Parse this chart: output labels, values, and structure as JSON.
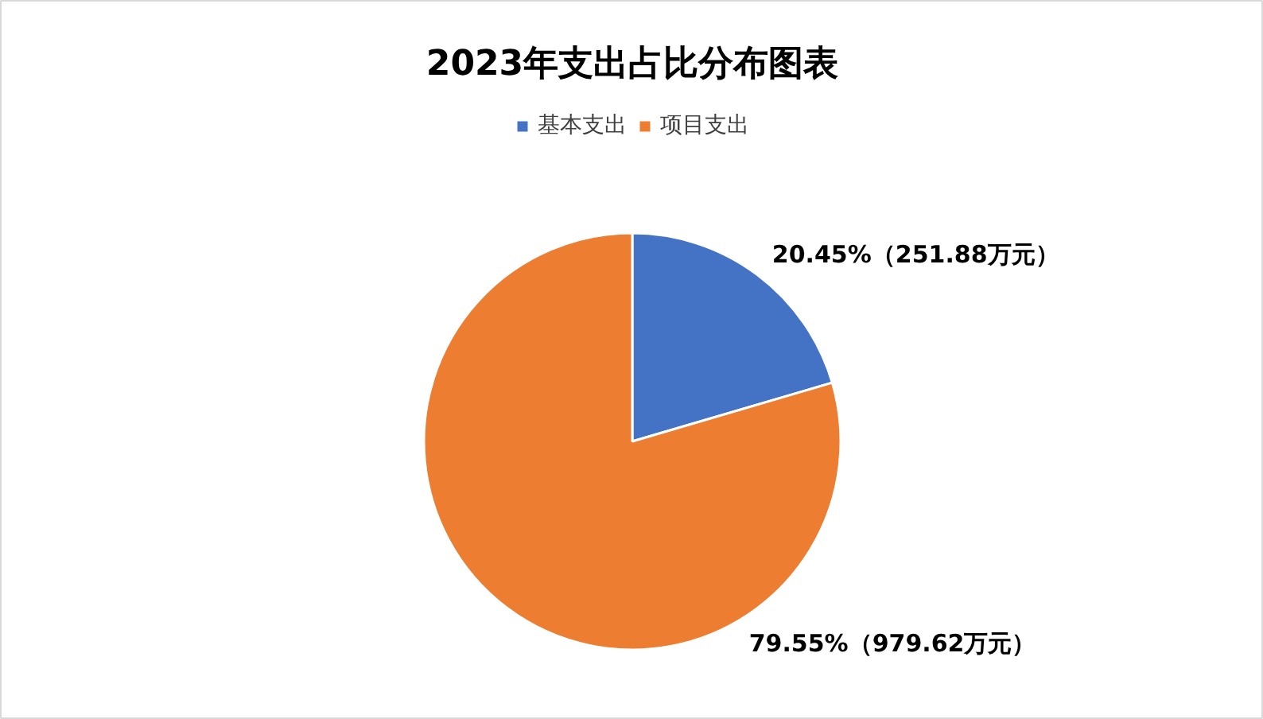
{
  "chart_data": {
    "type": "pie",
    "title": "2023年支出占比分布图表",
    "categories": [
      "基本支出",
      "项目支出"
    ],
    "values": [
      251.88,
      979.62
    ],
    "colors": [
      "#4472c4",
      "#ed7d31"
    ],
    "value_labels": [
      "20.45%（251.88万元）",
      "79.55%（979.62万元）"
    ],
    "legend": "top"
  }
}
